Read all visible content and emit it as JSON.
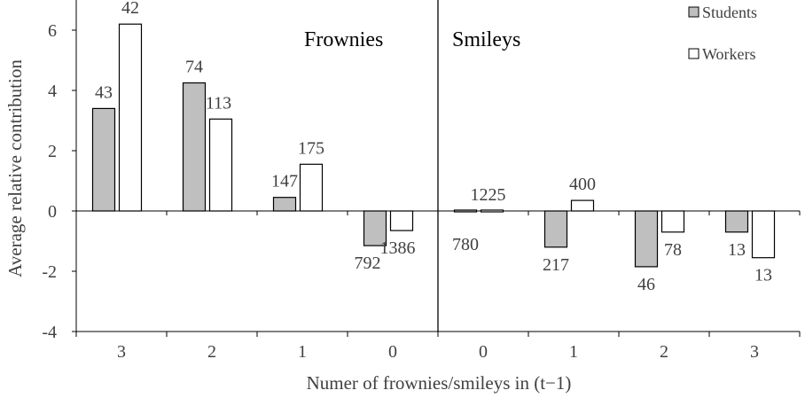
{
  "colors": {
    "students": "#bfbfbf",
    "workers": "#ffffff",
    "stroke": "#000000"
  },
  "chart_data": {
    "type": "bar",
    "categories": [
      "3",
      "2",
      "1",
      "0",
      "0",
      "1",
      "2",
      "3"
    ],
    "panels": [
      "Frownies",
      "Smileys"
    ],
    "series": [
      {
        "name": "Students",
        "values": [
          3.4,
          4.25,
          0.45,
          -1.15,
          -0.05,
          -1.2,
          -1.85,
          -0.7
        ],
        "labels": [
          "43",
          "74",
          "147",
          "792",
          "780",
          "217",
          "46",
          "13"
        ]
      },
      {
        "name": "Workers",
        "values": [
          6.2,
          3.05,
          1.55,
          -0.65,
          0.0,
          0.35,
          -0.7,
          -1.55
        ],
        "labels": [
          "42",
          "113",
          "175",
          "1386",
          "1225",
          "400",
          "78",
          "13"
        ]
      }
    ],
    "xlabel": "Numer of frownies/smileys in (t−1)",
    "ylabel": "Average relative contribution",
    "ylim": [
      -4,
      7
    ],
    "yticks": [
      "-4",
      "-2",
      "0",
      "2",
      "4",
      "6"
    ],
    "ytick_values": [
      -4,
      -2,
      0,
      2,
      4,
      6
    ],
    "legend": "top-right"
  }
}
